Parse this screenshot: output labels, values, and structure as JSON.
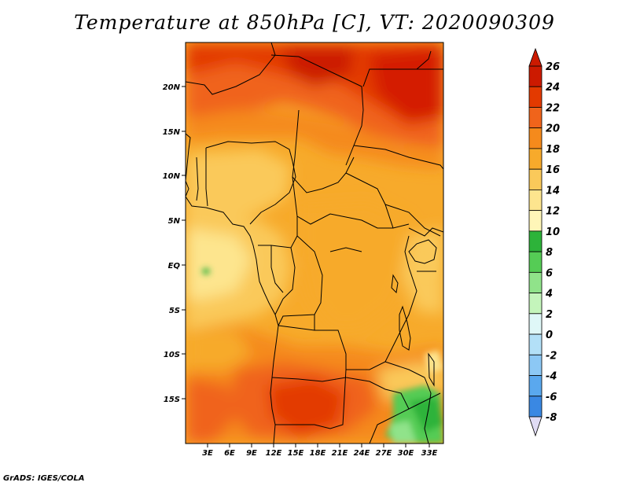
{
  "title": "Temperature at 850hPa [C], VT: 2020090309",
  "credit": "GrADS: IGES/COLA",
  "map": {
    "lat_ticks": [
      "20N",
      "15N",
      "10N",
      "5N",
      "EQ",
      "5S",
      "10S",
      "15S"
    ],
    "lon_ticks": [
      "3E",
      "6E",
      "9E",
      "12E",
      "15E",
      "18E",
      "21E",
      "24E",
      "27E",
      "30E",
      "33E"
    ]
  },
  "colorbar": {
    "labels": [
      "26",
      "24",
      "22",
      "20",
      "18",
      "16",
      "14",
      "12",
      "10",
      "8",
      "6",
      "4",
      "2",
      "0",
      "-2",
      "-4",
      "-6",
      "-8"
    ],
    "colors": [
      "#cc1a00",
      "#e33a00",
      "#f0641b",
      "#f58a1c",
      "#f7aa2b",
      "#fac95a",
      "#fde58e",
      "#fff6b8",
      "#2db33a",
      "#55cc55",
      "#90e38a",
      "#c4f5bb",
      "#dff7f7",
      "#b3e0f7",
      "#8cc8f5",
      "#5aa8ee",
      "#3a88e3",
      "#2266d6",
      "#1844b8",
      "#0a2890",
      "#06137a"
    ],
    "top_color": "#cc1a00",
    "bottom_color": "#e0dcf5"
  }
}
